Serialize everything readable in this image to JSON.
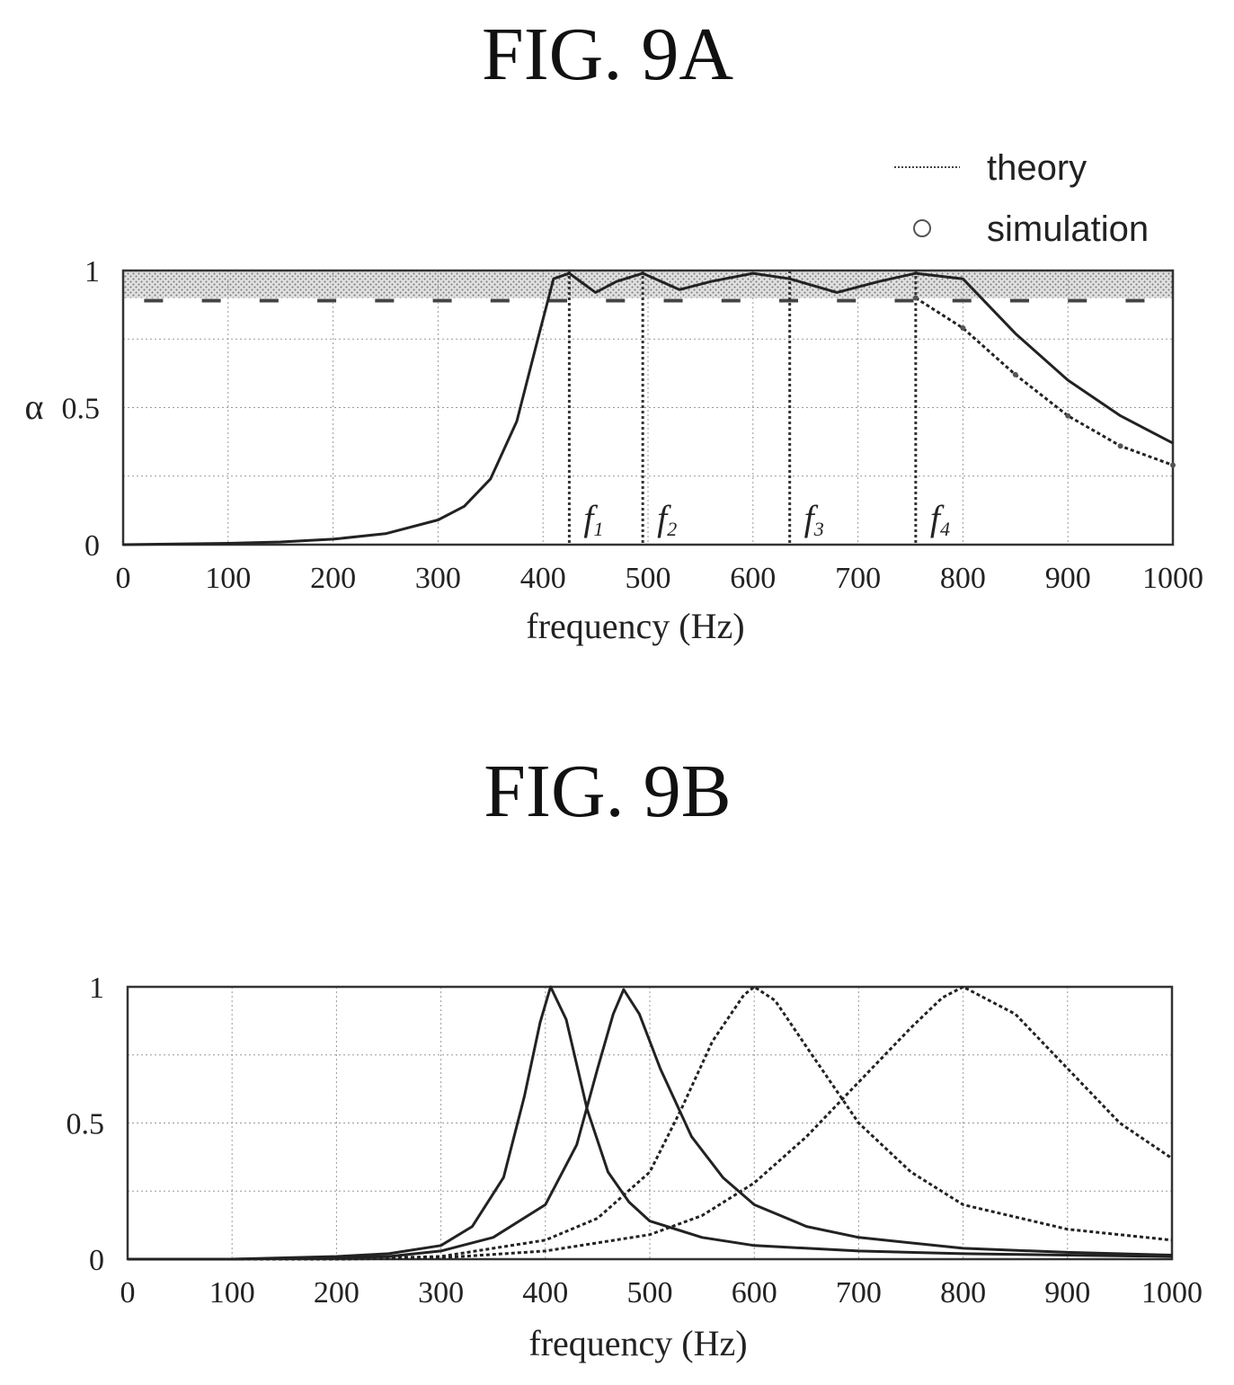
{
  "chart_data": [
    {
      "type": "line",
      "title": "FIG. 9A",
      "xlabel": "frequency (Hz)",
      "ylabel": "α",
      "xlim": [
        0,
        1000
      ],
      "ylim": [
        0,
        1
      ],
      "xticks": [
        "0",
        "100",
        "200",
        "300",
        "400",
        "500",
        "600",
        "700",
        "800",
        "900",
        "1000"
      ],
      "yticks": [
        "0",
        "0.5",
        "1"
      ],
      "grid": true,
      "legend_position": "top-right",
      "legend": [
        {
          "label": "theory",
          "style": "line"
        },
        {
          "label": "simulation",
          "style": "circle"
        }
      ],
      "shaded_band": {
        "y": [
          0.9,
          1.0
        ]
      },
      "vertical_markers": [
        {
          "x": 425,
          "label": "f",
          "sub": "1"
        },
        {
          "x": 495,
          "label": "f",
          "sub": "2"
        },
        {
          "x": 635,
          "label": "f",
          "sub": "3"
        },
        {
          "x": 755,
          "label": "f",
          "sub": "4"
        }
      ],
      "series": [
        {
          "name": "theory",
          "x": [
            0,
            100,
            150,
            200,
            250,
            300,
            325,
            350,
            375,
            395,
            410,
            425,
            450,
            470,
            495,
            530,
            560,
            600,
            635,
            680,
            720,
            755,
            800,
            850,
            900,
            950,
            1000
          ],
          "values": [
            0,
            0.005,
            0.01,
            0.02,
            0.04,
            0.09,
            0.14,
            0.24,
            0.45,
            0.75,
            0.97,
            0.99,
            0.92,
            0.96,
            0.99,
            0.93,
            0.96,
            0.99,
            0.97,
            0.92,
            0.96,
            0.99,
            0.97,
            0.77,
            0.6,
            0.47,
            0.37
          ]
        },
        {
          "name": "simulation",
          "x": [
            755,
            800,
            850,
            900,
            950,
            1000
          ],
          "values": [
            0.9,
            0.79,
            0.62,
            0.47,
            0.36,
            0.29
          ]
        }
      ]
    },
    {
      "type": "line",
      "title": "FIG. 9B",
      "xlabel": "frequency (Hz)",
      "ylabel": "",
      "xlim": [
        0,
        1000
      ],
      "ylim": [
        0,
        1
      ],
      "xticks": [
        "0",
        "100",
        "200",
        "300",
        "400",
        "500",
        "600",
        "700",
        "800",
        "900",
        "1000"
      ],
      "yticks": [
        "0",
        "0.5",
        "1"
      ],
      "grid": true,
      "series": [
        {
          "x": [
            0,
            100,
            200,
            250,
            300,
            330,
            360,
            380,
            395,
            405,
            420,
            440,
            460,
            480,
            500,
            550,
            600,
            700,
            800,
            900,
            1000
          ],
          "values": [
            0,
            0,
            0.01,
            0.02,
            0.05,
            0.12,
            0.3,
            0.6,
            0.87,
            1.0,
            0.88,
            0.55,
            0.32,
            0.21,
            0.14,
            0.08,
            0.05,
            0.03,
            0.02,
            0.015,
            0.01
          ]
        },
        {
          "x": [
            0,
            100,
            200,
            250,
            300,
            350,
            400,
            430,
            450,
            465,
            475,
            490,
            510,
            540,
            570,
            600,
            650,
            700,
            800,
            900,
            1000
          ],
          "values": [
            0,
            0,
            0.005,
            0.01,
            0.03,
            0.08,
            0.2,
            0.42,
            0.7,
            0.9,
            0.99,
            0.9,
            0.7,
            0.45,
            0.3,
            0.2,
            0.12,
            0.08,
            0.04,
            0.025,
            0.015
          ]
        },
        {
          "x": [
            0,
            100,
            200,
            300,
            400,
            450,
            500,
            530,
            560,
            590,
            600,
            620,
            650,
            700,
            750,
            800,
            900,
            1000
          ],
          "values": [
            0,
            0,
            0,
            0.01,
            0.07,
            0.15,
            0.32,
            0.55,
            0.8,
            0.97,
            1.0,
            0.95,
            0.78,
            0.5,
            0.32,
            0.2,
            0.11,
            0.07
          ]
        },
        {
          "x": [
            0,
            100,
            200,
            300,
            400,
            500,
            550,
            600,
            650,
            700,
            750,
            780,
            800,
            850,
            900,
            950,
            1000
          ],
          "values": [
            0,
            0,
            0,
            0.005,
            0.03,
            0.09,
            0.16,
            0.28,
            0.45,
            0.65,
            0.85,
            0.96,
            1.0,
            0.9,
            0.7,
            0.5,
            0.37
          ]
        }
      ]
    }
  ]
}
